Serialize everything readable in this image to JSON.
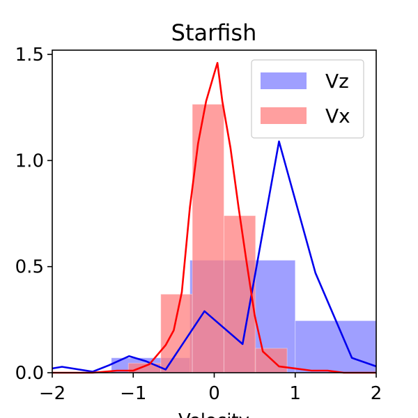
{
  "chart_data": {
    "type": "bar",
    "title": "Starfish",
    "xlabel": "Velocity",
    "ylabel": "",
    "xlim": [
      -2,
      2
    ],
    "ylim": [
      0,
      1.52
    ],
    "xticks": [
      -2,
      -1,
      0,
      1,
      2
    ],
    "xtick_labels": [
      "−2",
      "−1",
      "0",
      "1",
      "2"
    ],
    "yticks": [
      0.0,
      0.5,
      1.0,
      1.5
    ],
    "ytick_labels": [
      "0.0",
      "0.5",
      "1.0",
      "1.5"
    ],
    "grid": false,
    "legend_position": "top-right",
    "histograms": [
      {
        "name": "Vz",
        "color": "#7f7fff",
        "bins": [
          {
            "x0": -1.27,
            "x1": -0.3,
            "value": 0.07
          },
          {
            "x0": -0.3,
            "x1": 0.5,
            "value": 0.53
          },
          {
            "x0": 0.5,
            "x1": 1.0,
            "value": 0.53
          },
          {
            "x0": 1.0,
            "x1": 2.05,
            "value": 0.245
          }
        ]
      },
      {
        "name": "Vx",
        "color": "#ff7f7f",
        "bins": [
          {
            "x0": -1.06,
            "x1": -0.66,
            "value": 0.045
          },
          {
            "x0": -0.66,
            "x1": -0.27,
            "value": 0.37
          },
          {
            "x0": -0.27,
            "x1": 0.12,
            "value": 1.265
          },
          {
            "x0": 0.12,
            "x1": 0.51,
            "value": 0.74
          },
          {
            "x0": 0.51,
            "x1": 0.9,
            "value": 0.115
          }
        ]
      }
    ],
    "curves": [
      {
        "name": "Vz-density",
        "color": "#0000ee",
        "x": [
          -2.0,
          -1.88,
          -1.5,
          -1.3,
          -1.05,
          -0.85,
          -0.6,
          -0.12,
          0.35,
          0.8,
          1.25,
          1.7,
          2.0
        ],
        "y": [
          0.02,
          0.028,
          0.005,
          0.035,
          0.078,
          0.055,
          0.015,
          0.29,
          0.135,
          1.09,
          0.47,
          0.07,
          0.03
        ]
      },
      {
        "name": "Vx-density",
        "color": "#ff0000",
        "x": [
          -2.0,
          -1.5,
          -1.2,
          -1.0,
          -0.8,
          -0.6,
          -0.5,
          -0.4,
          -0.3,
          -0.2,
          -0.1,
          0.0,
          0.04,
          0.1,
          0.2,
          0.3,
          0.4,
          0.5,
          0.6,
          0.8,
          1.0,
          1.2,
          1.4,
          1.6,
          2.0
        ],
        "y": [
          0.0,
          0.0,
          0.01,
          0.01,
          0.04,
          0.13,
          0.2,
          0.38,
          0.78,
          1.08,
          1.28,
          1.41,
          1.46,
          1.28,
          1.06,
          0.78,
          0.52,
          0.27,
          0.1,
          0.03,
          0.02,
          0.01,
          0.01,
          0.0,
          0.0
        ]
      }
    ],
    "legend": [
      {
        "label": "Vz",
        "color": "#7f7fff"
      },
      {
        "label": "Vx",
        "color": "#ff7f7f"
      }
    ]
  }
}
